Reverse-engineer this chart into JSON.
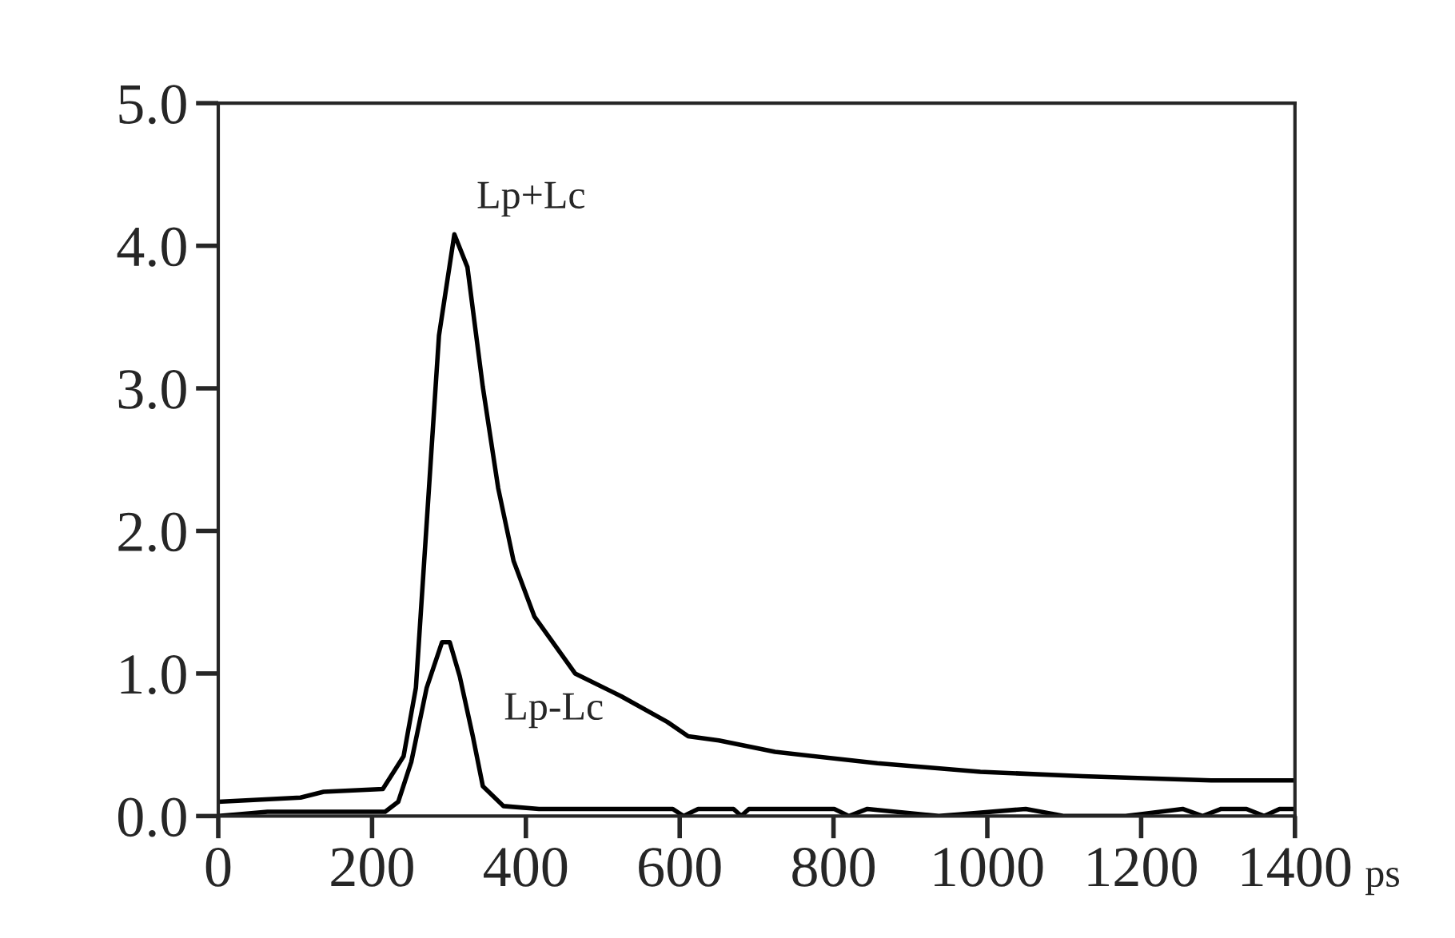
{
  "chart_data": {
    "type": "line",
    "xlabel": "ps",
    "xlim": [
      0,
      1400
    ],
    "xticks": [
      0,
      200,
      400,
      600,
      800,
      1000,
      1200,
      1400
    ],
    "ylim": [
      0,
      5.0
    ],
    "yticks": [
      {
        "value": 0,
        "label": "0.0"
      },
      {
        "value": 1,
        "label": "1.0"
      },
      {
        "value": 2,
        "label": "2.0"
      },
      {
        "value": 3,
        "label": "3.0"
      },
      {
        "value": 4,
        "label": "4.0"
      },
      {
        "value": 5,
        "label": "5.0"
      }
    ],
    "grid": false,
    "legend": false,
    "marker": "none",
    "line_style": "solid",
    "annotations": [
      {
        "text": "Lp+Lc",
        "x": 307,
        "y": 4.08
      },
      {
        "text": "Lp-Lc",
        "x": 331,
        "y": 0.56
      }
    ],
    "series": [
      {
        "color": "#000000",
        "x": [
          0,
          107,
          137,
          214,
          241,
          257,
          274,
          287,
          307,
          324,
          344,
          364,
          384,
          411,
          464,
          524,
          584,
          611,
          651,
          724,
          857,
          991,
          1124,
          1291,
          1400
        ],
        "values": [
          0.1,
          0.13,
          0.17,
          0.19,
          0.42,
          0.9,
          2.3,
          3.37,
          4.08,
          3.85,
          3.01,
          2.3,
          1.79,
          1.4,
          1.0,
          0.84,
          0.66,
          0.56,
          0.53,
          0.45,
          0.37,
          0.31,
          0.28,
          0.25,
          0.25
        ]
      },
      {
        "color": "#000000",
        "x": [
          0,
          64,
          217,
          234,
          251,
          271,
          291,
          301,
          314,
          331,
          344,
          371,
          417,
          591,
          605,
          624,
          670,
          680,
          690,
          801,
          820,
          844,
          937,
          1050,
          1100,
          1180,
          1254,
          1280,
          1304,
          1337,
          1360,
          1380,
          1400
        ],
        "values": [
          0.0,
          0.03,
          0.03,
          0.1,
          0.38,
          0.9,
          1.22,
          1.22,
          0.98,
          0.56,
          0.21,
          0.07,
          0.05,
          0.05,
          0.0,
          0.05,
          0.05,
          0.0,
          0.05,
          0.05,
          0.0,
          0.05,
          0.0,
          0.05,
          0.0,
          0.0,
          0.05,
          0.0,
          0.05,
          0.05,
          0.0,
          0.05,
          0.05
        ]
      }
    ]
  }
}
